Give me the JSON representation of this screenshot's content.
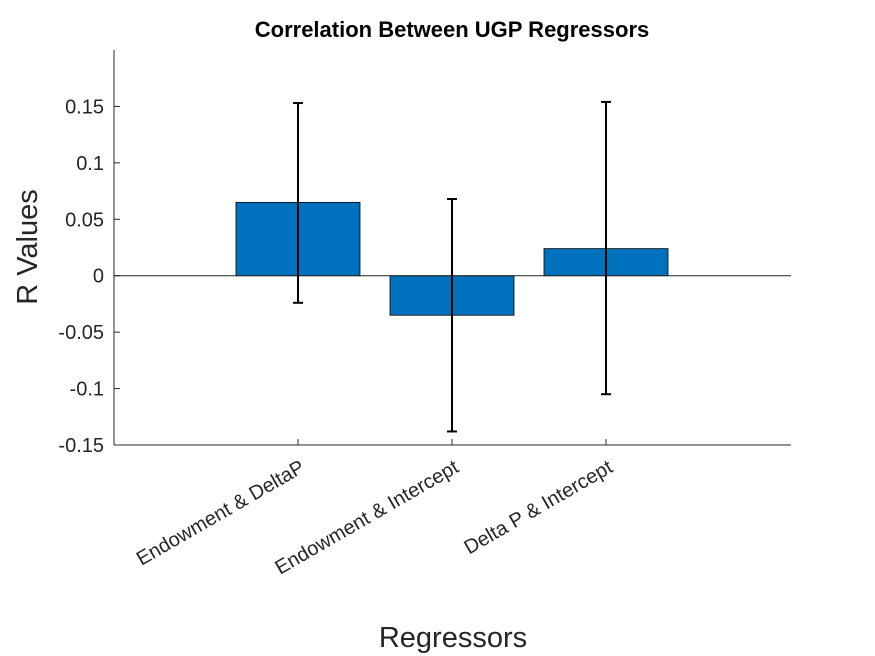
{
  "chart_data": {
    "type": "bar",
    "title": "Correlation Between UGP Regressors",
    "xlabel": "Regressors",
    "ylabel": "R Values",
    "categories": [
      "Endowment & DeltaP",
      "Endowment & Intercept",
      "Delta P & Intercept"
    ],
    "values": [
      0.065,
      -0.035,
      0.024
    ],
    "error_bars": [
      {
        "low": -0.024,
        "high": 0.153
      },
      {
        "low": -0.138,
        "high": 0.068
      },
      {
        "low": -0.105,
        "high": 0.154
      }
    ],
    "ylim": [
      -0.15,
      0.2
    ],
    "yticks": [
      -0.15,
      -0.1,
      -0.05,
      0,
      0.05,
      0.1,
      0.15
    ],
    "ytick_labels": [
      "-0.15",
      "-0.1",
      "-0.05",
      "0",
      "0.05",
      "0.1",
      "0.15"
    ],
    "grid": false,
    "bar_color": "#0072BD",
    "errorbar_color": "#000000"
  }
}
